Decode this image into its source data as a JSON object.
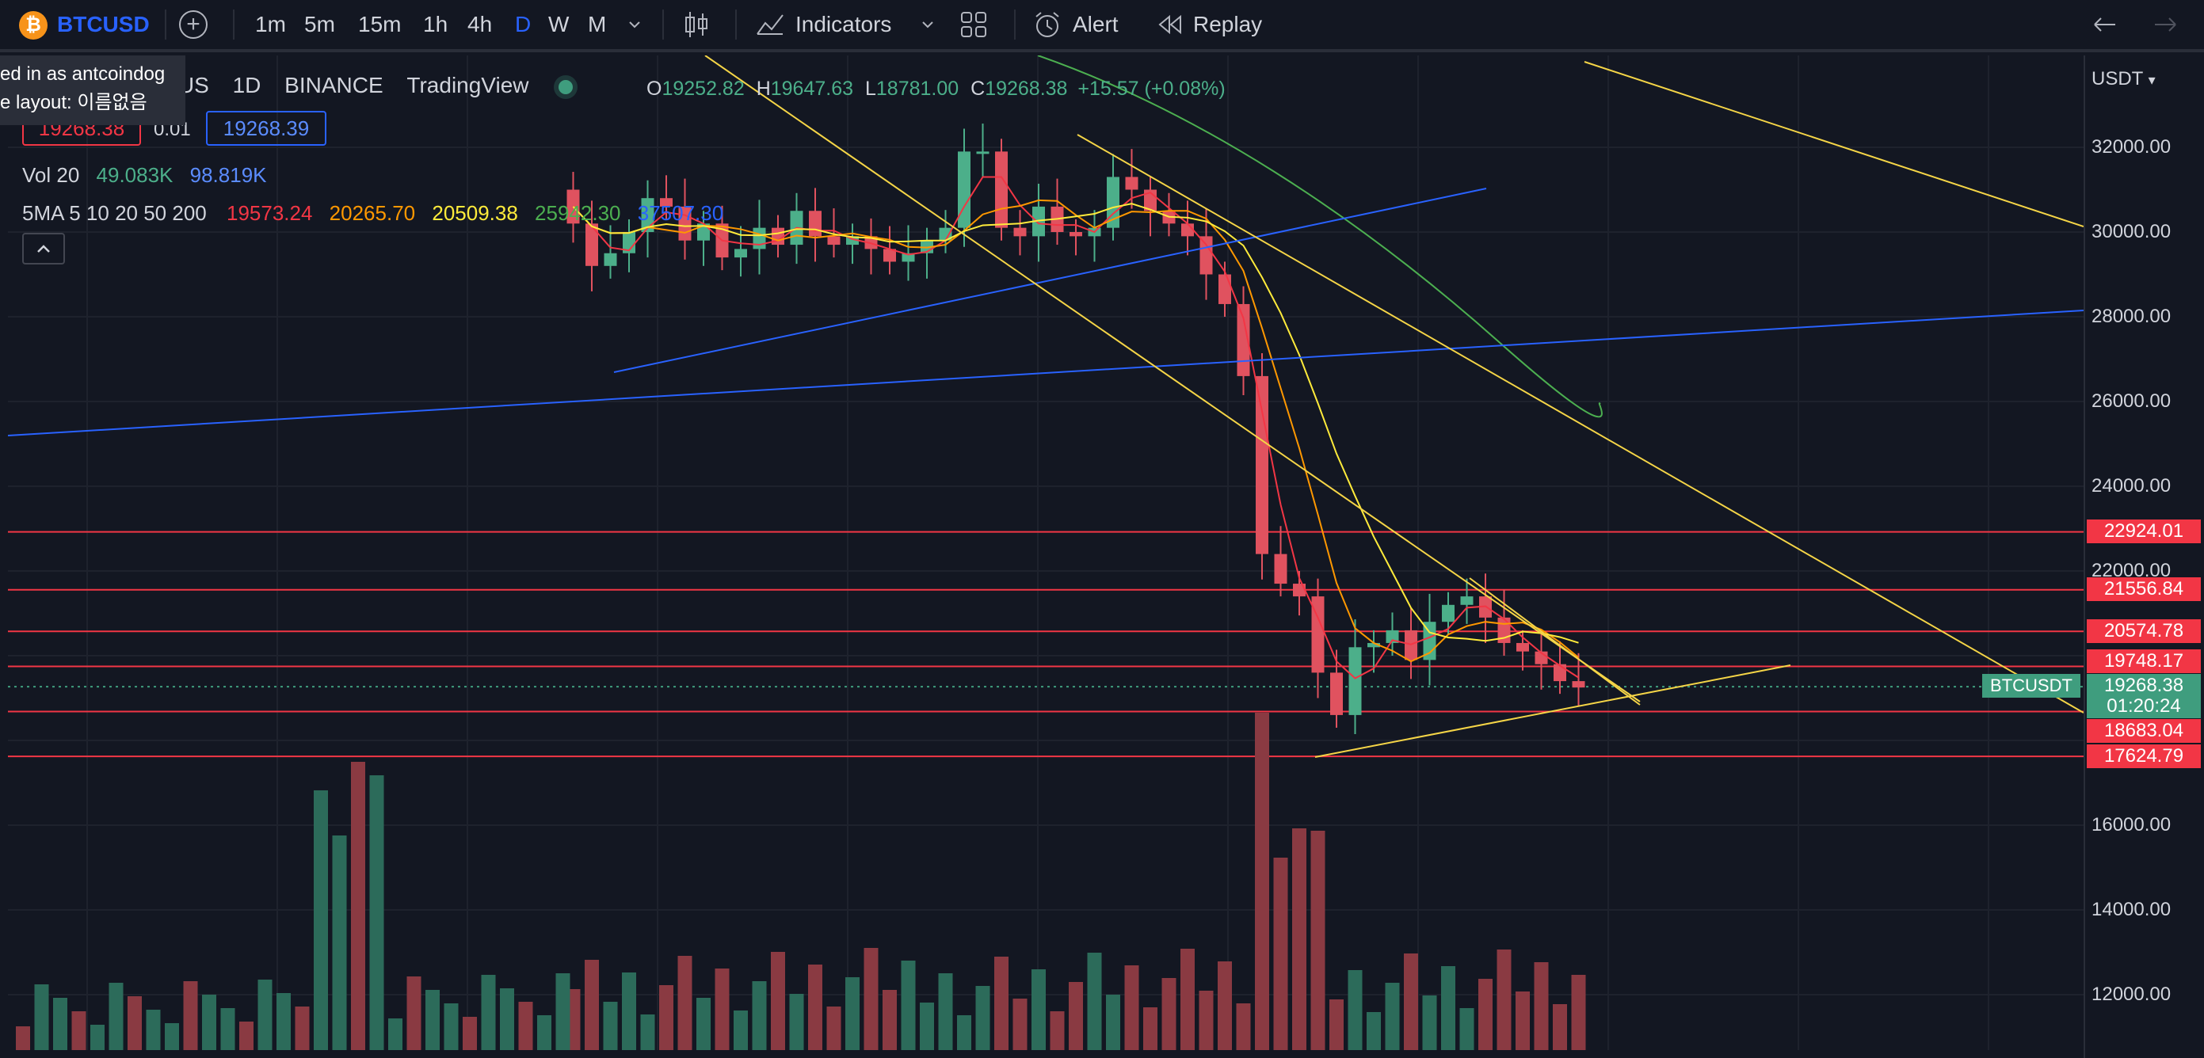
{
  "toolbar": {
    "logo_letter": "₿",
    "symbol": "BTCUSD",
    "intervals": [
      "1m",
      "5m",
      "15m",
      "1h",
      "4h",
      "D",
      "W",
      "M"
    ],
    "active_interval": "D",
    "indicators_label": "Indicators",
    "alert_label": "Alert",
    "replay_label": "Replay"
  },
  "tooltip": {
    "line1": "ed in as antcoindog",
    "line2": "e layout: 이름없음"
  },
  "legend": {
    "title_part": "erUS",
    "timeframe": "1D",
    "exchange": "BINANCE",
    "source": "TradingView",
    "o_label": "O",
    "o_value": "19252.82",
    "h_label": "H",
    "h_value": "19647.63",
    "l_label": "L",
    "l_value": "18781.00",
    "c_label": "C",
    "c_value": "19268.38",
    "change": "+15.57 (+0.08%)",
    "bid": "19268.38",
    "spread": "0.01",
    "ask": "19268.39",
    "vol_label": "Vol 20",
    "vol_value1": "49.083K",
    "vol_value2": "98.819K",
    "ma_label": "5MA 5 10 20 50 200",
    "ma5": "19573.24",
    "ma10": "20265.70",
    "ma20": "20509.38",
    "ma50": "25942.30",
    "ma200": "37507.30"
  },
  "axis": {
    "currency": "USDT",
    "ticks": [
      "32000.00",
      "30000.00",
      "28000.00",
      "26000.00",
      "24000.00",
      "22000.00",
      "16000.00",
      "14000.00",
      "12000.00"
    ],
    "levels": [
      {
        "label": "22924.01",
        "color": "#f23645"
      },
      {
        "label": "21556.84",
        "color": "#f23645"
      },
      {
        "label": "20574.78",
        "color": "#f23645"
      },
      {
        "label": "19748.17",
        "color": "#f23645"
      },
      {
        "label": "18683.04",
        "color": "#f23645"
      },
      {
        "label": "17624.79",
        "color": "#f23645"
      }
    ],
    "current_price": "19268.38",
    "countdown": "01:20:24",
    "symbol_tag": "BTCUSDT"
  },
  "colors": {
    "up": "#4caf8a",
    "down": "#e0525f",
    "ma5": "#f23645",
    "ma10": "#ff9800",
    "ma20": "#ffeb3b",
    "ma50": "#4caf50",
    "ma200": "#2962ff"
  }
}
